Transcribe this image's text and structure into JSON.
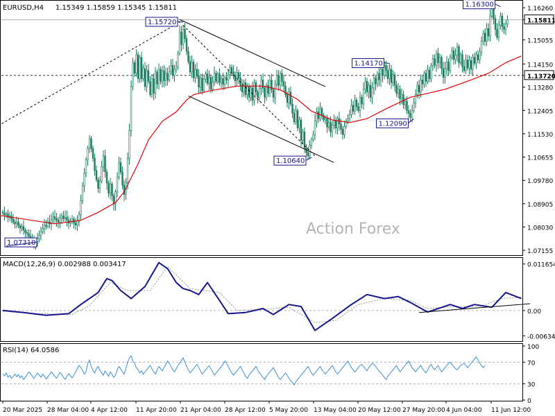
{
  "chart_data": [
    {
      "panel": "price",
      "type": "candlestick",
      "symbol_label": "EURUSD,H4",
      "ohlc_label": "1.15349 1.15859 1.15345 1.15811",
      "watermark": "Action Forex",
      "ylim": [
        1.07,
        1.165
      ],
      "yticks": [
        "1.16260",
        "1.15811",
        "1.15055",
        "1.14150",
        "1.13720",
        "1.13280",
        "1.12405",
        "1.11530",
        "1.10655",
        "1.09780",
        "1.08905",
        "1.08030",
        "1.07155"
      ],
      "current_price": "1.15811",
      "level_line": "1.13720",
      "swing_labels": [
        {
          "text": "1.07310",
          "bar": 2,
          "value": 1.0731
        },
        {
          "text": "1.15720",
          "bar": 104,
          "value": 1.1572
        },
        {
          "text": "1.10640",
          "bar": 178,
          "value": 1.1064
        },
        {
          "text": "1.14170",
          "bar": 223,
          "value": 1.1417
        },
        {
          "text": "1.12090",
          "bar": 237,
          "value": 1.1209
        },
        {
          "text": "1.16300",
          "bar": 287,
          "value": 1.163
        }
      ],
      "candles_close": [
        1.0855,
        1.0848,
        1.0852,
        1.0839,
        1.0845,
        1.0833,
        1.0821,
        1.0815,
        1.0822,
        1.0808,
        1.0799,
        1.0805,
        1.0791,
        1.0782,
        1.0778,
        1.0768,
        1.0761,
        1.0753,
        1.074,
        1.0748,
        1.076,
        1.0772,
        1.0785,
        1.0797,
        1.081,
        1.0805,
        1.0822,
        1.0815,
        1.083,
        1.0842,
        1.0835,
        1.0828,
        1.0821,
        1.0837,
        1.0845,
        1.0834,
        1.084,
        1.0829,
        1.0818,
        1.0825,
        1.0833,
        1.0818,
        1.081,
        1.0825,
        1.0849,
        1.0902,
        1.0958,
        1.1006,
        1.1055,
        1.1098,
        1.1135,
        1.1098,
        1.1062,
        1.1015,
        1.098,
        1.0948,
        1.0976,
        1.103,
        1.107,
        1.101,
        1.0968,
        1.093,
        1.0965,
        1.092,
        1.089,
        1.0935,
        1.099,
        1.1045,
        1.101,
        1.096,
        1.0925,
        1.097,
        1.106,
        1.1165,
        1.133,
        1.142,
        1.138,
        1.145,
        1.136,
        1.144,
        1.136,
        1.1398,
        1.133,
        1.139,
        1.135,
        1.13,
        1.136,
        1.1305,
        1.1385,
        1.134,
        1.1395,
        1.135,
        1.139,
        1.1352,
        1.138,
        1.1355,
        1.1385,
        1.141,
        1.1372,
        1.1395,
        1.1405,
        1.1455,
        1.1535,
        1.1488,
        1.1545,
        1.151,
        1.1462,
        1.1424,
        1.1385,
        1.1422,
        1.1363,
        1.1395,
        1.137,
        1.1328,
        1.1362,
        1.1315,
        1.1358,
        1.1378,
        1.1342,
        1.1365,
        1.132,
        1.1348,
        1.138,
        1.135,
        1.1378,
        1.1345,
        1.136,
        1.1338,
        1.1364,
        1.1355,
        1.1374,
        1.1402,
        1.1385,
        1.137,
        1.1352,
        1.1383,
        1.1362,
        1.1335,
        1.131,
        1.1345,
        1.13,
        1.133,
        1.129,
        1.1325,
        1.1278,
        1.1345,
        1.131,
        1.1288,
        1.1323,
        1.1355,
        1.1325,
        1.129,
        1.1335,
        1.1305,
        1.1354,
        1.1318,
        1.129,
        1.1338,
        1.1372,
        1.1335,
        1.138,
        1.135,
        1.1332,
        1.13,
        1.127,
        1.131,
        1.1265,
        1.123,
        1.1198,
        1.124,
        1.1175,
        1.1205,
        1.1128,
        1.116,
        1.11,
        1.1082,
        1.107,
        1.111,
        1.1132,
        1.115,
        1.12,
        1.1235,
        1.121,
        1.1248,
        1.1222,
        1.1205,
        1.1212,
        1.1178,
        1.1195,
        1.116,
        1.1186,
        1.1202,
        1.1175,
        1.121,
        1.119,
        1.117,
        1.115,
        1.118,
        1.12,
        1.121,
        1.1225,
        1.126,
        1.1238,
        1.128,
        1.1255,
        1.124,
        1.129,
        1.1265,
        1.132,
        1.135,
        1.131,
        1.1335,
        1.129,
        1.1325,
        1.1362,
        1.134,
        1.138,
        1.1355,
        1.1395,
        1.1372,
        1.141,
        1.139,
        1.136,
        1.1395,
        1.1345,
        1.1375,
        1.1335,
        1.1305,
        1.132,
        1.1285,
        1.13,
        1.1262,
        1.1275,
        1.124,
        1.123,
        1.1215,
        1.124,
        1.127,
        1.13,
        1.1335,
        1.131,
        1.1355,
        1.134,
        1.138,
        1.135,
        1.1392,
        1.136,
        1.141,
        1.1435,
        1.141,
        1.1455,
        1.142,
        1.144,
        1.1398,
        1.1365,
        1.1398,
        1.1422,
        1.139,
        1.144,
        1.1465,
        1.1432,
        1.1448,
        1.148,
        1.142,
        1.145,
        1.1405,
        1.139,
        1.143,
        1.14,
        1.1428,
        1.1395,
        1.144,
        1.1418,
        1.145,
        1.143,
        1.146,
        1.15,
        1.153,
        1.15,
        1.1548,
        1.152,
        1.1595,
        1.1625,
        1.1585,
        1.1545,
        1.1515,
        1.156,
        1.1595,
        1.1555,
        1.1545,
        1.1565,
        1.1581
      ],
      "ma_start": [
        -9,
        1.0845
      ],
      "ma_path": [
        [
          0,
          1.0845
        ],
        [
          30,
          1.0815
        ],
        [
          45,
          1.0828
        ],
        [
          55,
          1.0858
        ],
        [
          65,
          1.0895
        ],
        [
          70,
          1.0935
        ],
        [
          78,
          1.104
        ],
        [
          84,
          1.113
        ],
        [
          92,
          1.12
        ],
        [
          100,
          1.1235
        ],
        [
          106,
          1.128
        ],
        [
          110,
          1.13
        ],
        [
          120,
          1.1315
        ],
        [
          135,
          1.1332
        ],
        [
          150,
          1.1332
        ],
        [
          160,
          1.1318
        ],
        [
          170,
          1.1282
        ],
        [
          178,
          1.1238
        ],
        [
          190,
          1.1205
        ],
        [
          200,
          1.1195
        ],
        [
          210,
          1.121
        ],
        [
          222,
          1.125
        ],
        [
          235,
          1.129
        ],
        [
          245,
          1.1305
        ],
        [
          255,
          1.132
        ],
        [
          270,
          1.1355
        ],
        [
          280,
          1.138
        ],
        [
          290,
          1.142
        ],
        [
          299,
          1.1445
        ]
      ],
      "channel_upper": [
        [
          102,
          1.1582
        ],
        [
          186,
          1.133
        ]
      ],
      "channel_lower": [
        [
          107,
          1.1295
        ],
        [
          191,
          1.1045
        ]
      ],
      "trend_line_dashed": [
        [
          -9,
          1.116
        ],
        [
          102,
          1.1572
        ]
      ],
      "retrace_line_dashed": [
        [
          104,
          1.156
        ],
        [
          180,
          1.107
        ]
      ]
    },
    {
      "panel": "macd",
      "type": "line",
      "label": "MACD(12,26,9) 0.002988 0.003417",
      "ylim": [
        -0.0075,
        0.013
      ],
      "yticks": [
        "0.011654",
        "0.00",
        "-0.006345"
      ],
      "main_series": [
        [
          0,
          0.0
        ],
        [
          12,
          -0.0005
        ],
        [
          25,
          -0.0012
        ],
        [
          38,
          -0.0008
        ],
        [
          45,
          0.0015
        ],
        [
          55,
          0.0045
        ],
        [
          60,
          0.008
        ],
        [
          63,
          0.0075
        ],
        [
          68,
          0.005
        ],
        [
          74,
          0.003
        ],
        [
          82,
          0.006
        ],
        [
          90,
          0.012
        ],
        [
          95,
          0.0105
        ],
        [
          100,
          0.007
        ],
        [
          104,
          0.0055
        ],
        [
          108,
          0.005
        ],
        [
          113,
          0.004
        ],
        [
          118,
          0.007
        ],
        [
          125,
          0.0025
        ],
        [
          130,
          -0.0008
        ],
        [
          140,
          -0.0005
        ],
        [
          150,
          0.0005
        ],
        [
          156,
          -0.001
        ],
        [
          165,
          0.0015
        ],
        [
          172,
          0.001
        ],
        [
          180,
          -0.005
        ],
        [
          190,
          -0.002
        ],
        [
          200,
          0.0012
        ],
        [
          210,
          0.004
        ],
        [
          220,
          0.003
        ],
        [
          228,
          0.0035
        ],
        [
          235,
          0.002
        ],
        [
          245,
          -0.0004
        ],
        [
          258,
          0.0015
        ],
        [
          265,
          0.0005
        ],
        [
          272,
          0.0015
        ],
        [
          282,
          0.0008
        ],
        [
          290,
          0.0045
        ],
        [
          296,
          0.0035
        ],
        [
          299,
          0.003
        ]
      ],
      "signal_series": [
        [
          0,
          -0.0002
        ],
        [
          20,
          -0.0008
        ],
        [
          40,
          -0.001
        ],
        [
          50,
          0.0012
        ],
        [
          62,
          0.007
        ],
        [
          72,
          0.005
        ],
        [
          85,
          0.005
        ],
        [
          95,
          0.011
        ],
        [
          108,
          0.0055
        ],
        [
          125,
          0.0045
        ],
        [
          135,
          0.0
        ],
        [
          150,
          0.0003
        ],
        [
          165,
          0.0008
        ],
        [
          180,
          -0.003
        ],
        [
          192,
          -0.0025
        ],
        [
          205,
          0.0015
        ],
        [
          220,
          0.003
        ],
        [
          235,
          0.0025
        ],
        [
          245,
          0.0005
        ],
        [
          260,
          0.001
        ],
        [
          275,
          0.001
        ],
        [
          288,
          0.003
        ],
        [
          299,
          0.0034
        ]
      ],
      "zero_line": 0,
      "trend_line": [
        [
          240,
          -0.0005
        ],
        [
          304,
          0.0017
        ]
      ]
    },
    {
      "panel": "rsi",
      "type": "line",
      "label": "RSI(14) 64.0586",
      "ylim": [
        0,
        100
      ],
      "yticks": [
        "100",
        "70",
        "30",
        "0"
      ],
      "levels": [
        70,
        30
      ],
      "series": [
        48,
        45,
        50,
        42,
        46,
        40,
        44,
        48,
        43,
        47,
        41,
        45,
        38,
        42,
        47,
        52,
        49,
        44,
        40,
        45,
        50,
        46,
        42,
        48,
        44,
        39,
        43,
        47,
        52,
        48,
        44,
        40,
        46,
        51,
        47,
        42,
        38,
        44,
        49,
        45,
        41,
        46,
        52,
        58,
        64,
        60,
        55,
        48,
        52,
        68,
        74,
        62,
        55,
        50,
        58,
        62,
        55,
        50,
        46,
        54,
        49,
        44,
        52,
        48,
        42,
        46,
        56,
        62,
        58,
        52,
        48,
        58,
        70,
        78,
        82,
        72,
        68,
        60,
        56,
        50,
        54,
        48,
        52,
        56,
        60,
        64,
        58,
        52,
        48,
        56,
        62,
        58,
        54,
        60,
        66,
        72,
        68,
        62,
        56,
        52,
        58,
        64,
        68,
        74,
        78,
        70,
        62,
        56,
        50,
        54,
        58,
        62,
        66,
        60,
        54,
        48,
        52,
        56,
        60,
        64,
        58,
        52,
        46,
        50,
        54,
        58,
        62,
        66,
        72,
        68,
        62,
        56,
        50,
        46,
        50,
        54,
        58,
        62,
        56,
        50,
        44,
        40,
        46,
        50,
        54,
        58,
        62,
        56,
        50,
        46,
        42,
        38,
        44,
        48,
        52,
        56,
        60,
        54,
        48,
        42,
        38,
        42,
        46,
        50,
        46,
        40,
        36,
        32,
        28,
        34,
        38,
        42,
        46,
        50,
        54,
        58,
        62,
        56,
        50,
        46,
        50,
        54,
        58,
        62,
        56,
        52,
        48,
        52,
        56,
        60,
        64,
        58,
        52,
        48,
        52,
        56,
        60,
        64,
        68,
        72,
        66,
        60,
        56,
        52,
        56,
        60,
        64,
        66,
        62,
        58,
        54,
        60,
        64,
        68,
        66,
        62,
        58,
        54,
        50,
        46,
        42,
        38,
        44,
        48,
        52,
        56,
        60,
        64,
        58,
        52,
        56,
        60,
        64,
        68,
        72,
        66,
        60,
        56,
        52,
        56,
        60,
        64,
        58,
        54,
        50,
        56,
        62,
        66,
        60,
        56,
        60,
        64,
        58,
        52,
        56,
        60,
        64,
        68,
        70,
        66,
        62,
        58,
        56,
        60,
        64,
        66,
        68,
        64,
        60,
        64,
        68,
        72,
        76,
        80,
        74,
        68,
        64,
        60,
        64
      ],
      "series_start_x": 4
    }
  ],
  "x_axis_ticks": [
    "20 Mar 2025",
    "28 Mar 04:00",
    "4 Apr 12:00",
    "11 Apr 20:00",
    "21 Apr 04:00",
    "28 Apr 12:00",
    "5 May 20:00",
    "13 May 04:00",
    "20 May 12:00",
    "27 May 20:00",
    "4 Jun 04:00",
    "11 Jun 12:00"
  ],
  "colors": {
    "bull_candle": "#1a7a5e",
    "bear_candle": "#1a7a5e",
    "moving_average": "#e00000",
    "macd_main": "#14148c",
    "macd_signal": "#909090",
    "rsi_line": "#3b8fd6",
    "label_border": "#14148c",
    "grid": "#c8c8c8",
    "watermark": "#b4b4b4",
    "axis_text": "#000000"
  }
}
